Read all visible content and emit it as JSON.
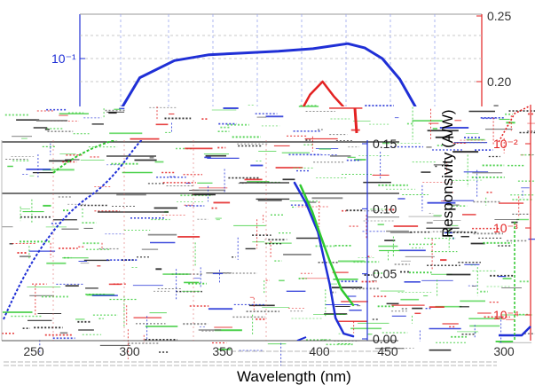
{
  "chart_data": {
    "type": "line",
    "xlabel": "Wavelength (nm)",
    "ylabel_right": "Responsivity (A/W)",
    "x_ticks": [
      "250",
      "300",
      "350",
      "400",
      "450"
    ],
    "xlim": [
      225,
      465
    ],
    "axes": {
      "top_left": {
        "scale": "log",
        "ticks": [
          "10⁻¹"
        ],
        "color": "#1f2fd6"
      },
      "top_right": {
        "scale": "linear",
        "ylim": [
          0.15,
          0.25
        ],
        "ticks": [
          "0.20",
          "0.25"
        ],
        "color": "#e32222"
      },
      "bottom_right": {
        "scale": "linear",
        "ylim": [
          0.0,
          0.17
        ],
        "ticks": [
          "0.00",
          "0.05",
          "0.10",
          "0.15"
        ],
        "color": "#1f2fd6"
      },
      "far_right": {
        "scale": "log",
        "ticks": [
          "10⁻²",
          "10⁻³",
          "10⁻⁴"
        ],
        "color": "#e32222"
      },
      "far_bottom_ticks": [
        "300"
      ]
    },
    "series": [
      {
        "color": "#1f2fd6",
        "axis": "top_left",
        "x": [
          290,
          300,
          320,
          340,
          360,
          380,
          400,
          420,
          430,
          440,
          450,
          460
        ],
        "y": [
          0.03,
          0.062,
          0.095,
          0.11,
          0.115,
          0.12,
          0.128,
          0.145,
          0.13,
          0.1,
          0.06,
          0.028
        ]
      },
      {
        "color": "#e32222",
        "axis": "top_right",
        "x": [
          404,
          415,
          423,
          430,
          440,
          447
        ],
        "y": [
          0.166,
          0.19,
          0.2,
          0.189,
          0.176,
          0.168
        ]
      },
      {
        "color": "#1f2fd6",
        "axis": "bottom_right",
        "x": [
          350,
          360,
          370,
          380,
          385,
          392,
          400
        ],
        "y": [
          0.12,
          0.104,
          0.082,
          0.042,
          0.016,
          0.004,
          0.002
        ]
      },
      {
        "color": "#2fc92f",
        "axis": "bottom_right",
        "x": [
          355,
          365,
          372,
          380,
          390,
          400
        ],
        "y": [
          0.118,
          0.098,
          0.08,
          0.06,
          0.038,
          0.026
        ]
      }
    ]
  }
}
